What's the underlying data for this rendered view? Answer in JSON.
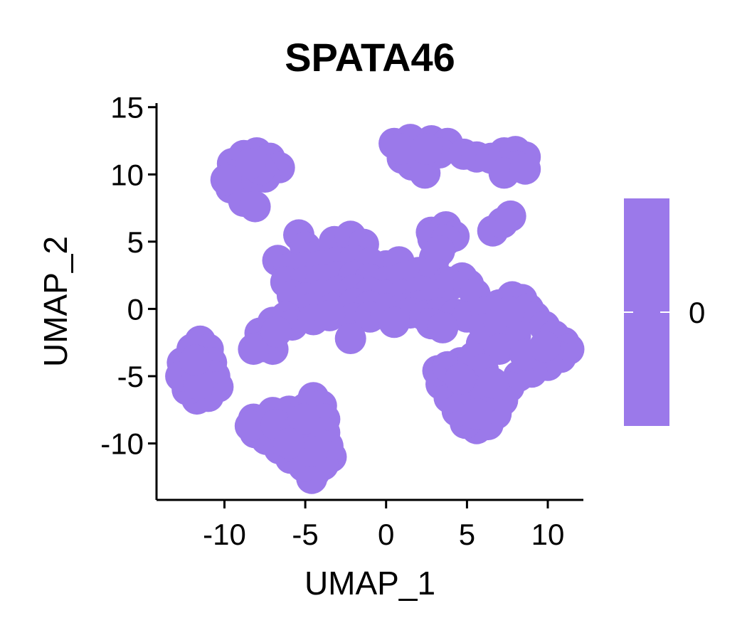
{
  "chart_data": {
    "type": "scatter",
    "title": "SPATA46",
    "xlabel": "UMAP_1",
    "ylabel": "UMAP_2",
    "xlim": [
      -14.2,
      12.2
    ],
    "ylim": [
      -14.2,
      15.3
    ],
    "x_ticks": [
      -10,
      -5,
      0,
      5,
      10
    ],
    "y_ticks": [
      15,
      10,
      5,
      0,
      -5,
      -10
    ],
    "x_tick_labels": [
      "-10",
      "-5",
      "0",
      "5",
      "10"
    ],
    "y_tick_labels": [
      "15",
      "10",
      "5",
      "0",
      "-5",
      "-10"
    ],
    "grid": false,
    "legend": {
      "type": "colorbar",
      "placement": "right",
      "labels": [
        "0"
      ],
      "color": "#9b79ea"
    },
    "point_color": "#9b79ea",
    "clusters": [
      {
        "points": [
          [
            -9.5,
            10.8
          ],
          [
            -8.8,
            11.4
          ],
          [
            -8.0,
            11.6
          ],
          [
            -7.2,
            11.2
          ],
          [
            -6.6,
            10.5
          ],
          [
            -7.5,
            9.8
          ],
          [
            -8.6,
            9.2
          ],
          [
            -9.6,
            9.0
          ],
          [
            -8.8,
            8.0
          ],
          [
            -8.1,
            7.6
          ],
          [
            -9.2,
            10.0
          ],
          [
            -7.8,
            10.4
          ],
          [
            -8.4,
            10.8
          ],
          [
            -9.9,
            9.6
          ]
        ]
      },
      {
        "points": [
          [
            0.5,
            12.3
          ],
          [
            1.5,
            12.6
          ],
          [
            2.8,
            12.5
          ],
          [
            3.8,
            12.3
          ],
          [
            2.0,
            11.5
          ],
          [
            1.0,
            11.2
          ],
          [
            1.6,
            10.7
          ],
          [
            2.4,
            10.1
          ],
          [
            3.3,
            11.6
          ],
          [
            4.8,
            11.5
          ],
          [
            5.6,
            11.3
          ],
          [
            6.5,
            11.2
          ],
          [
            7.3,
            11.6
          ],
          [
            8.0,
            11.7
          ],
          [
            8.6,
            11.3
          ],
          [
            8.1,
            10.6
          ],
          [
            7.3,
            10.1
          ],
          [
            8.6,
            10.4
          ],
          [
            0.9,
            11.9
          ],
          [
            2.5,
            11.9
          ]
        ]
      },
      {
        "points": [
          [
            6.6,
            5.8
          ],
          [
            7.2,
            6.4
          ],
          [
            7.7,
            6.9
          ]
        ]
      },
      {
        "points": [
          [
            2.8,
            5.7
          ],
          [
            3.7,
            6.1
          ],
          [
            4.2,
            5.4
          ],
          [
            3.2,
            4.8
          ],
          [
            2.9,
            5.2
          ],
          [
            3.7,
            5.1
          ],
          [
            3.0,
            3.8
          ],
          [
            2.6,
            2.8
          ],
          [
            3.3,
            4.3
          ]
        ]
      },
      {
        "points": [
          [
            -5.4,
            5.5
          ],
          [
            -5.0,
            4.6
          ],
          [
            -4.2,
            4.0
          ],
          [
            -3.2,
            5.0
          ],
          [
            -2.2,
            5.4
          ],
          [
            -1.4,
            4.8
          ],
          [
            -6.7,
            3.6
          ],
          [
            -6.0,
            3.0
          ],
          [
            -5.0,
            3.1
          ],
          [
            -4.0,
            3.2
          ],
          [
            -3.0,
            3.5
          ],
          [
            -2.0,
            3.6
          ],
          [
            -1.0,
            3.4
          ],
          [
            0.0,
            3.2
          ],
          [
            0.8,
            3.5
          ],
          [
            -6.2,
            2.0
          ],
          [
            -5.0,
            2.0
          ],
          [
            -4.0,
            2.2
          ],
          [
            -3.0,
            2.4
          ],
          [
            -2.0,
            2.4
          ],
          [
            -1.0,
            2.2
          ],
          [
            0.0,
            2.0
          ],
          [
            1.0,
            2.3
          ],
          [
            2.0,
            2.7
          ],
          [
            3.0,
            2.7
          ],
          [
            3.8,
            2.0
          ],
          [
            4.7,
            2.3
          ],
          [
            -5.8,
            1.0
          ],
          [
            -5.0,
            0.8
          ],
          [
            -4.0,
            1.0
          ],
          [
            -3.0,
            1.3
          ],
          [
            -2.0,
            1.4
          ],
          [
            -1.0,
            1.2
          ],
          [
            0.0,
            1.0
          ],
          [
            1.0,
            1.0
          ],
          [
            2.2,
            1.3
          ],
          [
            4.0,
            1.8
          ],
          [
            5.1,
            1.8
          ],
          [
            5.5,
            1.1
          ],
          [
            -4.6,
            0.0
          ],
          [
            -3.2,
            0.1
          ],
          [
            -2.0,
            0.4
          ],
          [
            -1.0,
            0.2
          ],
          [
            0.0,
            0.0
          ],
          [
            1.0,
            0.0
          ],
          [
            2.0,
            0.2
          ],
          [
            3.0,
            0.4
          ],
          [
            -6.2,
            -0.6
          ],
          [
            -7.0,
            -1.0
          ],
          [
            -5.8,
            -1.2
          ],
          [
            -4.5,
            -0.8
          ],
          [
            -2.0,
            -0.7
          ],
          [
            -1.0,
            -0.6
          ],
          [
            0.0,
            -0.4
          ],
          [
            1.5,
            -0.3
          ],
          [
            2.4,
            -0.5
          ],
          [
            3.3,
            -0.3
          ],
          [
            4.3,
            -0.4
          ],
          [
            5.0,
            -0.6
          ],
          [
            -7.8,
            -1.8
          ],
          [
            -7.6,
            -2.8
          ],
          [
            -7.0,
            -3.0
          ],
          [
            -8.2,
            -3.0
          ],
          [
            -6.8,
            -1.7
          ],
          [
            -2.2,
            -2.2
          ],
          [
            2.8,
            -1.1
          ],
          [
            3.5,
            -1.4
          ],
          [
            -3.5,
            -0.5
          ],
          [
            0.5,
            -1.0
          ]
        ]
      },
      {
        "points": [
          [
            6.2,
            -0.2
          ],
          [
            7.0,
            0.3
          ],
          [
            7.8,
            0.9
          ],
          [
            8.4,
            0.7
          ],
          [
            8.8,
            0.0
          ],
          [
            9.2,
            -0.6
          ],
          [
            9.8,
            -1.3
          ],
          [
            10.4,
            -2.0
          ],
          [
            11.0,
            -2.5
          ],
          [
            11.3,
            -3.0
          ],
          [
            10.8,
            -3.6
          ],
          [
            10.0,
            -4.2
          ],
          [
            9.0,
            -4.7
          ],
          [
            8.2,
            -5.0
          ],
          [
            7.6,
            -5.8
          ],
          [
            7.2,
            -6.8
          ],
          [
            6.8,
            -7.8
          ],
          [
            6.3,
            -8.6
          ],
          [
            5.6,
            -8.9
          ],
          [
            4.9,
            -8.5
          ],
          [
            4.4,
            -7.6
          ],
          [
            3.9,
            -6.6
          ],
          [
            3.4,
            -5.6
          ],
          [
            3.2,
            -4.6
          ],
          [
            3.8,
            -4.3
          ],
          [
            4.6,
            -4.0
          ],
          [
            5.4,
            -3.6
          ],
          [
            5.9,
            -2.6
          ],
          [
            6.1,
            -1.5
          ],
          [
            7.0,
            -1.0
          ],
          [
            8.0,
            -2.0
          ],
          [
            7.0,
            -3.0
          ],
          [
            6.0,
            -4.5
          ],
          [
            5.2,
            -6.0
          ],
          [
            6.2,
            -6.5
          ],
          [
            5.6,
            -7.8
          ],
          [
            8.6,
            -3.4
          ],
          [
            9.8,
            -2.8
          ],
          [
            7.6,
            -0.2
          ],
          [
            4.6,
            -5.2
          ],
          [
            6.6,
            -5.5
          ]
        ]
      },
      {
        "points": [
          [
            -12.6,
            -4.0
          ],
          [
            -12.0,
            -3.0
          ],
          [
            -11.5,
            -2.4
          ],
          [
            -11.0,
            -3.0
          ],
          [
            -10.8,
            -4.0
          ],
          [
            -10.6,
            -5.0
          ],
          [
            -10.4,
            -5.8
          ],
          [
            -11.0,
            -6.5
          ],
          [
            -11.7,
            -6.7
          ],
          [
            -12.3,
            -6.0
          ],
          [
            -12.7,
            -5.0
          ],
          [
            -11.7,
            -4.7
          ],
          [
            -11.6,
            -5.6
          ],
          [
            -11.8,
            -3.8
          ]
        ]
      },
      {
        "points": [
          [
            -8.2,
            -8.2
          ],
          [
            -7.0,
            -7.7
          ],
          [
            -6.0,
            -7.6
          ],
          [
            -5.0,
            -7.4
          ],
          [
            -4.5,
            -6.6
          ],
          [
            -4.0,
            -7.2
          ],
          [
            -3.8,
            -8.2
          ],
          [
            -3.8,
            -9.2
          ],
          [
            -3.6,
            -10.2
          ],
          [
            -3.4,
            -11.0
          ],
          [
            -3.9,
            -11.6
          ],
          [
            -4.4,
            -12.1
          ],
          [
            -4.6,
            -12.6
          ],
          [
            -5.1,
            -11.7
          ],
          [
            -5.9,
            -11.1
          ],
          [
            -6.6,
            -10.4
          ],
          [
            -7.4,
            -9.7
          ],
          [
            -8.1,
            -9.2
          ],
          [
            -8.4,
            -8.7
          ],
          [
            -6.8,
            -8.6
          ],
          [
            -5.6,
            -9.1
          ],
          [
            -4.6,
            -9.5
          ],
          [
            -5.1,
            -8.2
          ],
          [
            -4.6,
            -10.6
          ],
          [
            -6.0,
            -10.0
          ]
        ]
      }
    ]
  }
}
